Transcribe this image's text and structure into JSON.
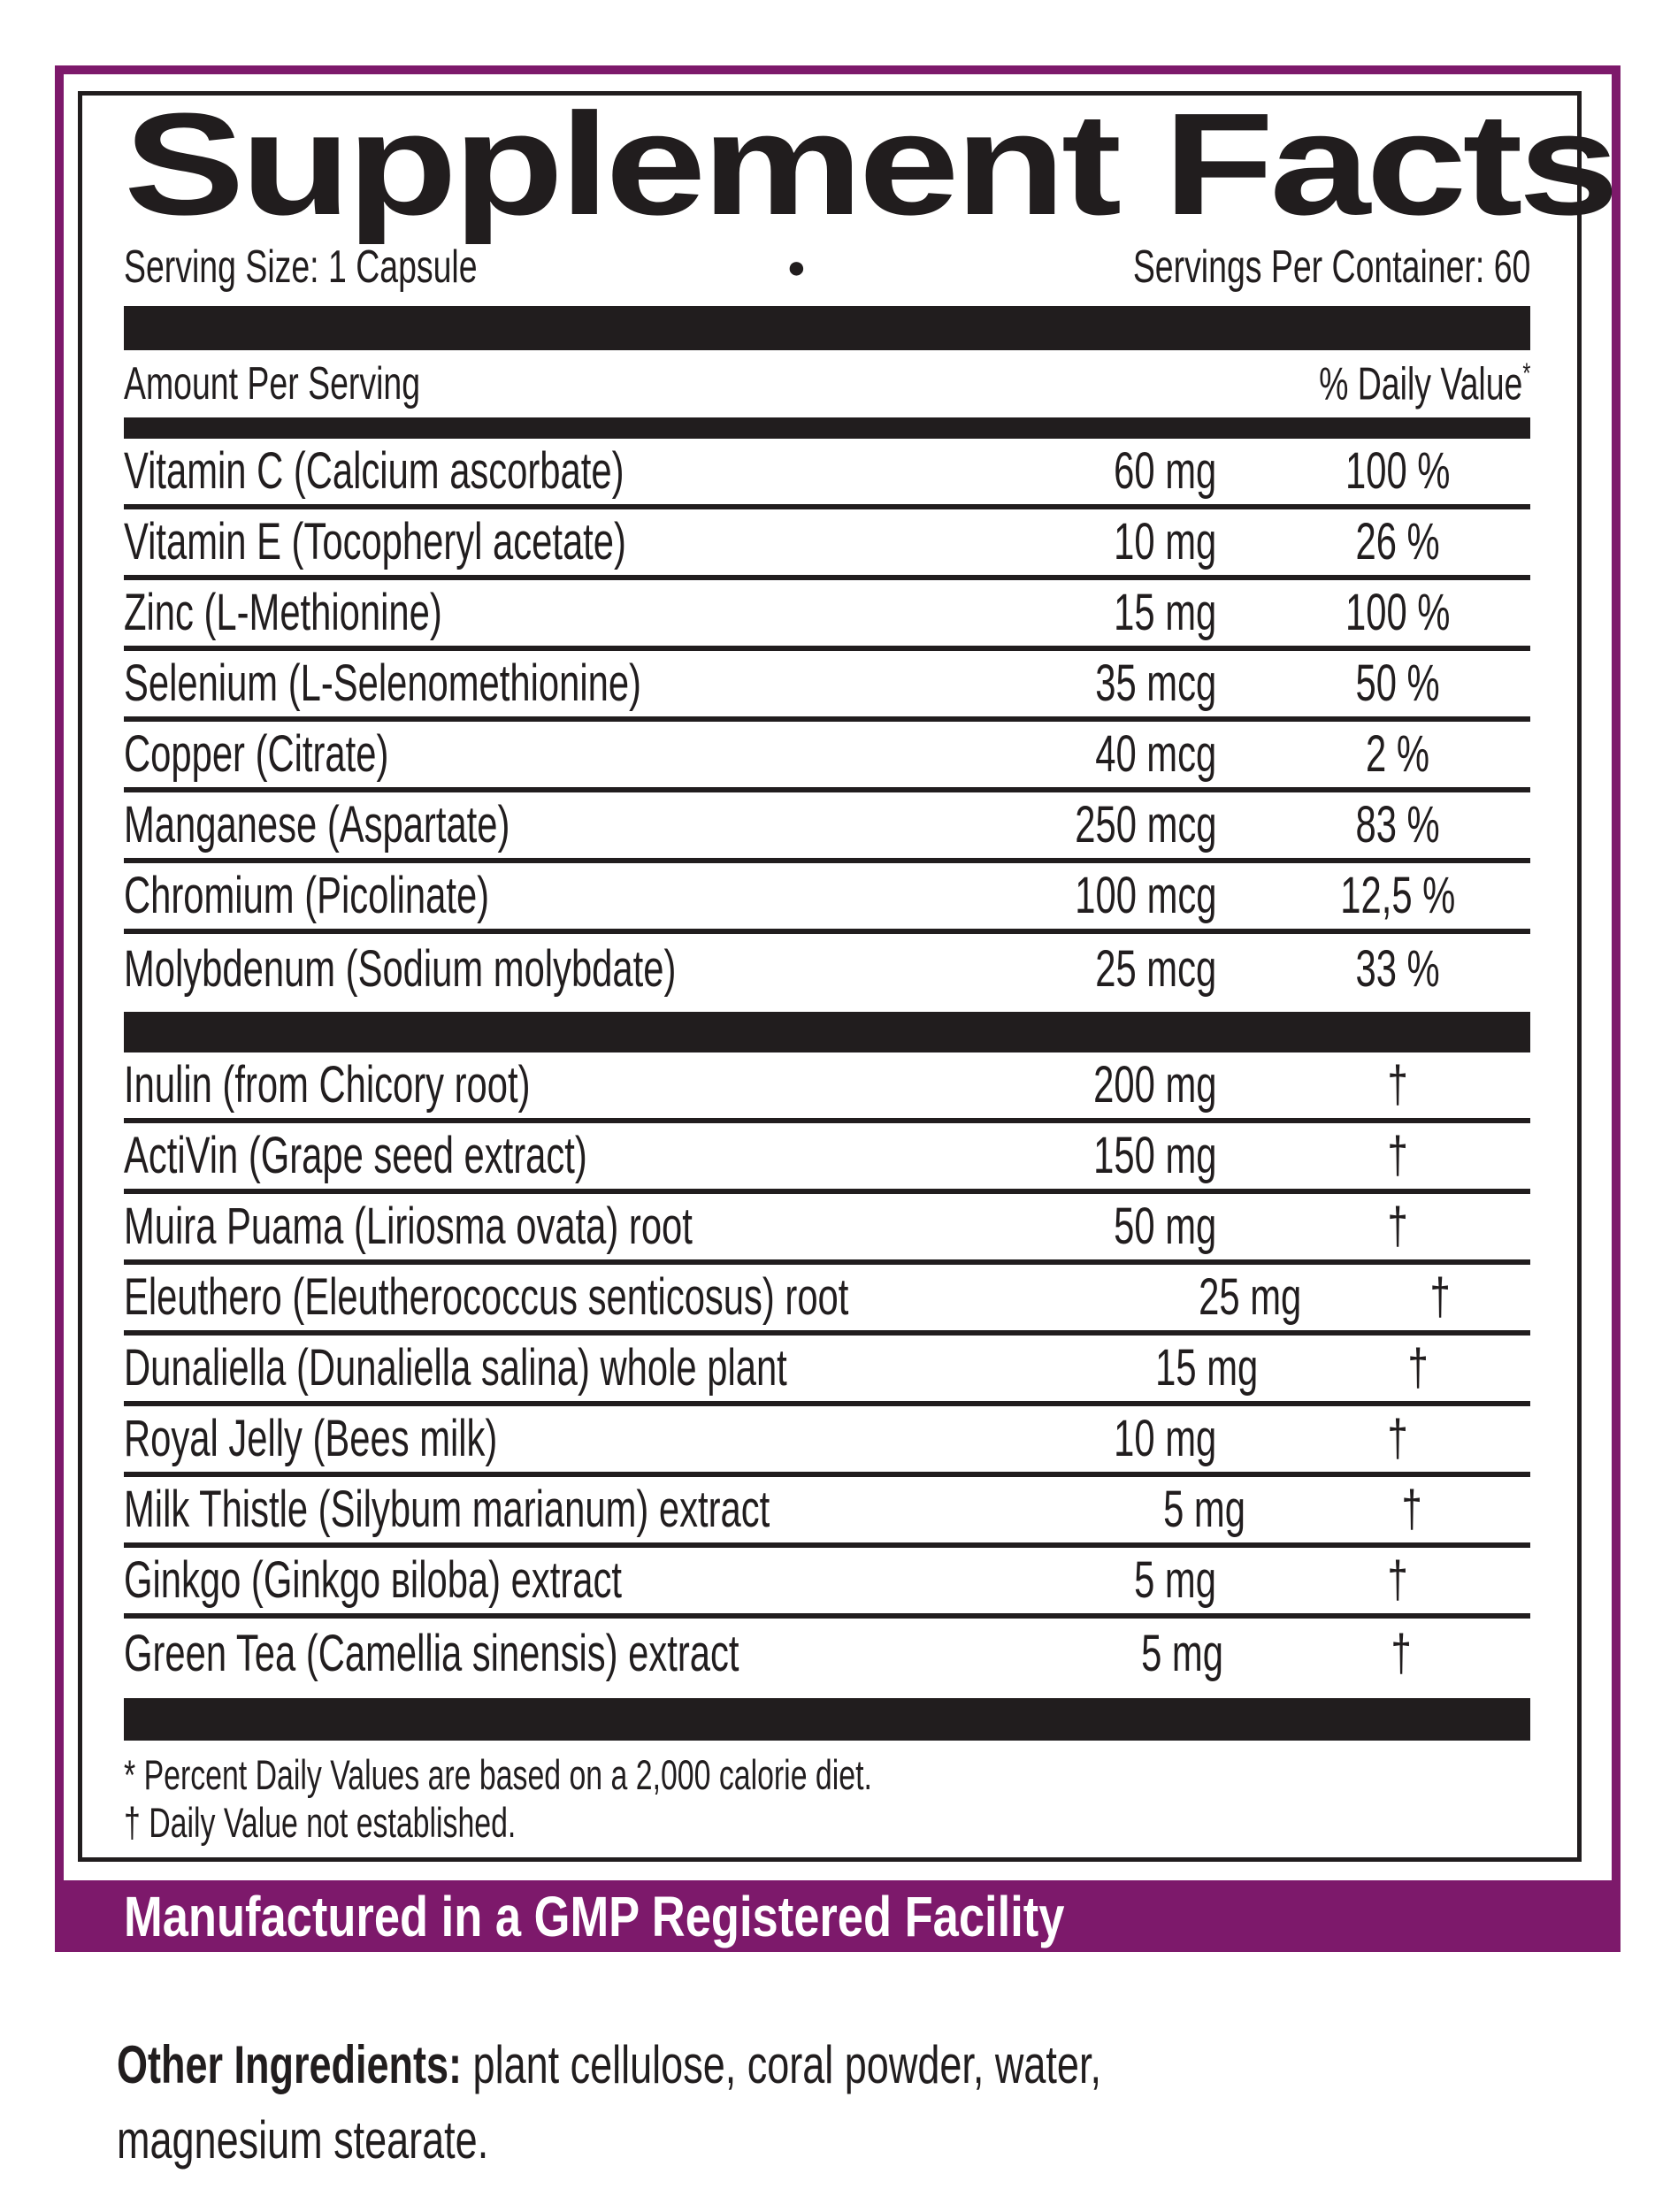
{
  "colors": {
    "purple": "#7d196b",
    "ink": "#211d1e",
    "background": "#ffffff",
    "banner_text": "#ffffff"
  },
  "header": {
    "title": "Supplement Facts",
    "serving_size": "Serving Size: 1 Capsule",
    "bullet": "●",
    "servings_per_container": "Servings Per Container: 60"
  },
  "columns": {
    "amount_per_serving": "Amount Per Serving",
    "daily_value": "% Daily Value",
    "daily_value_mark": "*"
  },
  "rows": [
    {
      "name": "Vitamin C (Calcium ascorbate)",
      "amount": "60 mg",
      "dv": "100 %"
    },
    {
      "name": "Vitamin E (Tocopheryl acetate)",
      "amount": "10 mg",
      "dv": "26 %"
    },
    {
      "name": "Zinc (L-Methionine)",
      "amount": "15 mg",
      "dv": "100 %"
    },
    {
      "name": "Selenium (L-Selenomethionine)",
      "amount": "35 mcg",
      "dv": "50 %"
    },
    {
      "name": "Copper (Citrate)",
      "amount": "40 mcg",
      "dv": "2 %"
    },
    {
      "name": "Manganese (Aspartate)",
      "amount": "250 mcg",
      "dv": "83 %"
    },
    {
      "name": "Chromium (Picolinate)",
      "amount": "100 mcg",
      "dv": "12,5 %"
    },
    {
      "name": "Molybdenum (Sodium molybdate)",
      "amount": "25 mcg",
      "dv": "33 %"
    },
    {
      "name": "Inulin (from Chicory root)",
      "amount": "200 mg",
      "dv": "†"
    },
    {
      "name": "ActiVin (Grape seed extract)",
      "amount": "150 mg",
      "dv": "†"
    },
    {
      "name": "Muira Puama (Liriosma ovata) root",
      "amount": "50 mg",
      "dv": "†"
    },
    {
      "name": "Eleuthero (Eleutherococcus senticosus) root",
      "amount": "25 mg",
      "dv": "†"
    },
    {
      "name": "Dunaliella (Dunaliella salina) whole plant",
      "amount": "15 mg",
      "dv": "†"
    },
    {
      "name": "Royal Jelly (Bees milk)",
      "amount": "10 mg",
      "dv": "†"
    },
    {
      "name": "Milk Thistle (Silybum marianum) extract",
      "amount": "5 mg",
      "dv": "†"
    },
    {
      "name": "Ginkgo (Ginkgo вiloba) extract",
      "amount": "5 mg",
      "dv": "†"
    },
    {
      "name": "Green Tea (Camellia sinensis) extract",
      "amount": "5 mg",
      "dv": "†"
    }
  ],
  "footnotes": {
    "asterisk": "* Percent Daily Values are based on a 2,000 calorie diet.",
    "dagger": "† Daily Value not established."
  },
  "banner": {
    "text": "Manufactured in a GMP Registered Facility"
  },
  "other_ingredients": {
    "label": "Other Ingredients:",
    "text": " plant cellulose, coral powder, water, magnesium stearate."
  }
}
